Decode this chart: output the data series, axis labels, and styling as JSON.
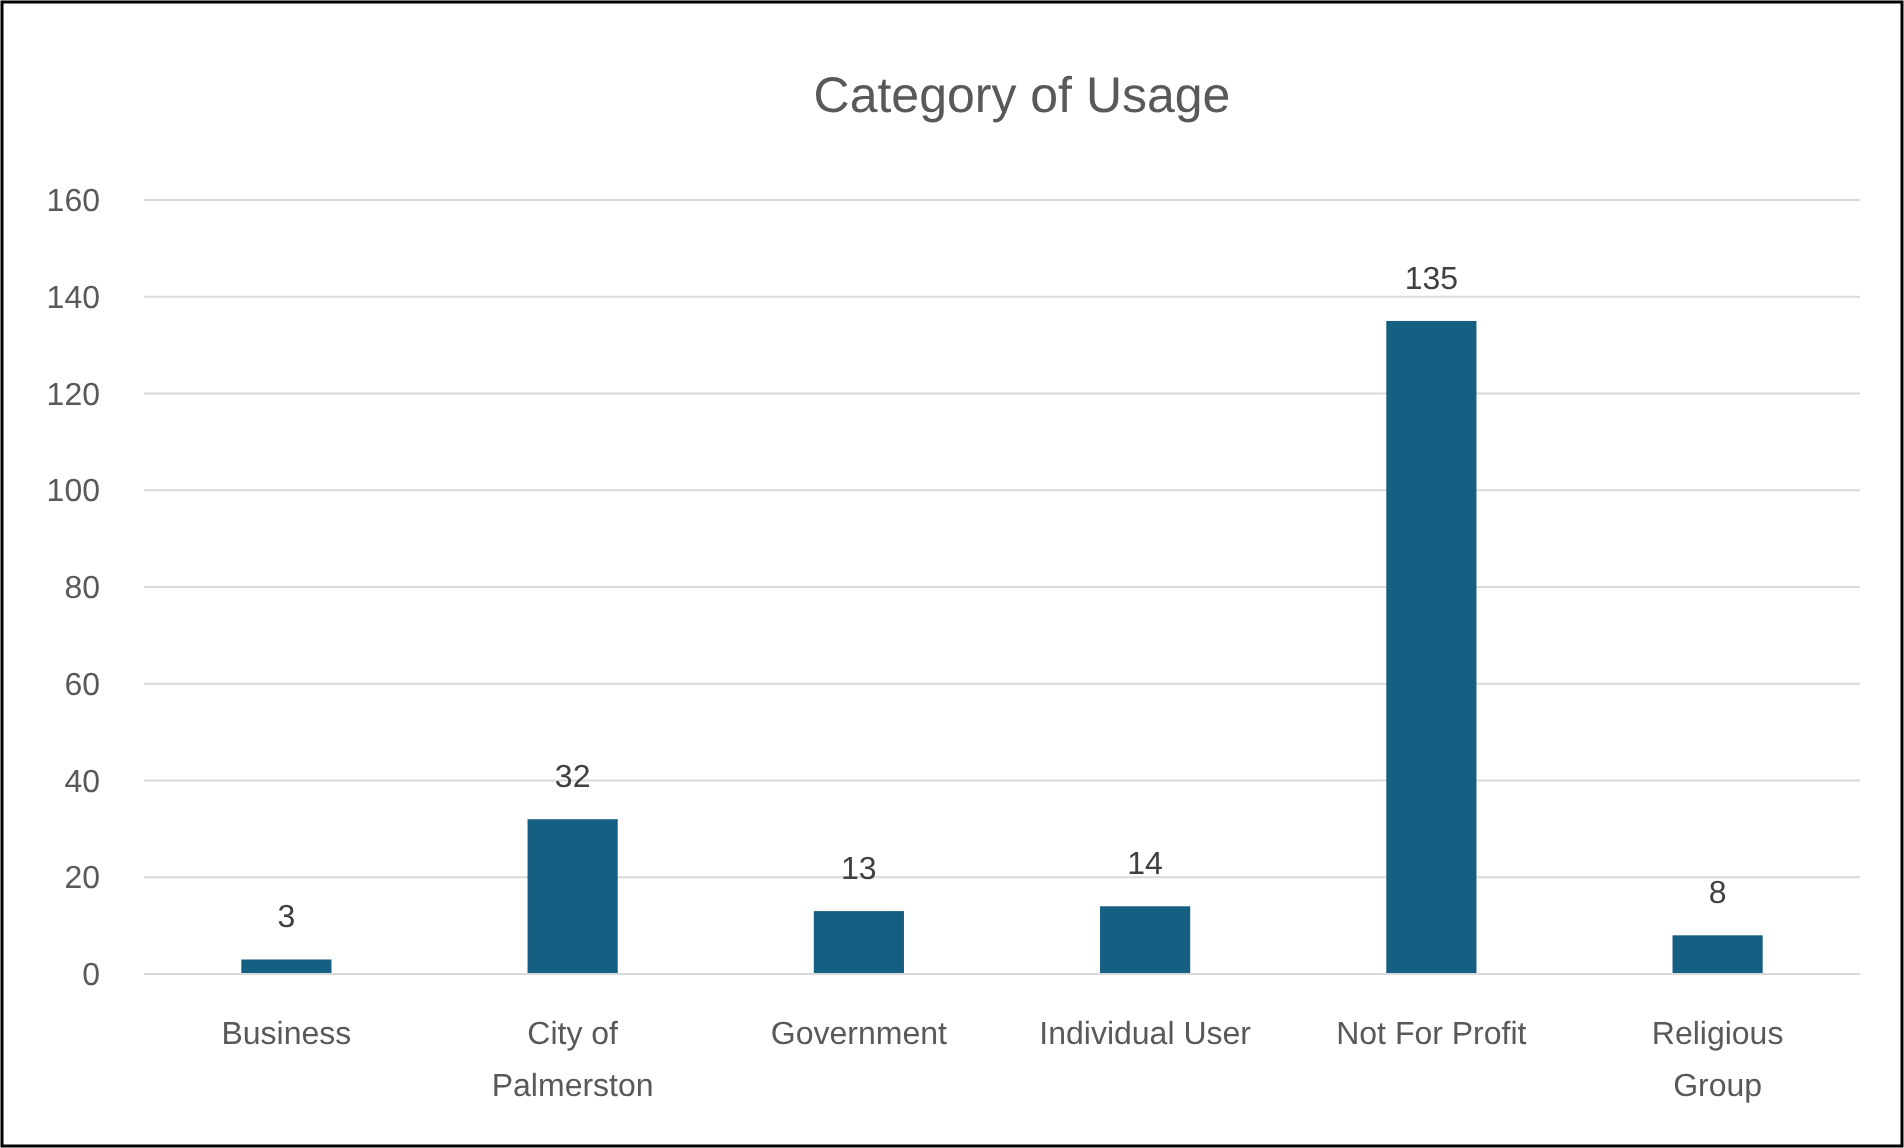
{
  "chart_data": {
    "type": "bar",
    "title": "Category of Usage",
    "categories": [
      "Business",
      "City of Palmerston",
      "Government",
      "Individual User",
      "Not For Profit",
      "Religious Group"
    ],
    "values": [
      3,
      32,
      13,
      14,
      135,
      8
    ],
    "color": "#156082",
    "ylim": [
      0,
      160
    ],
    "yticks": [
      0,
      20,
      40,
      60,
      80,
      100,
      120,
      140,
      160
    ],
    "grid": "y",
    "data_labels": true
  }
}
